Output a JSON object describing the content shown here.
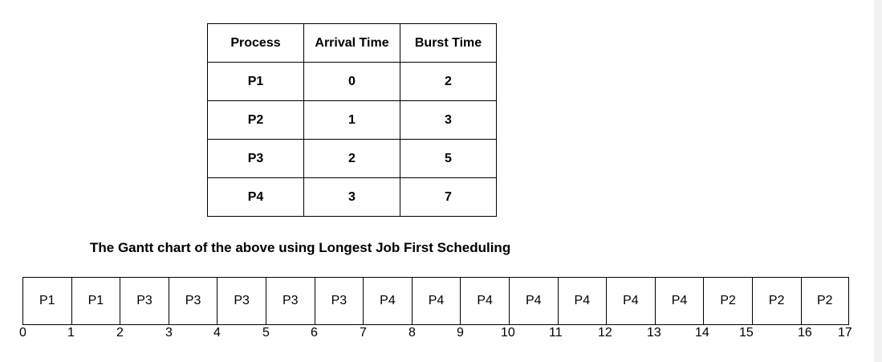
{
  "table": {
    "headers": [
      "Process",
      "Arrival Time",
      "Burst Time"
    ],
    "rows": [
      [
        "P1",
        "0",
        "2"
      ],
      [
        "P2",
        "1",
        "3"
      ],
      [
        "P3",
        "2",
        "5"
      ],
      [
        "P4",
        "3",
        "7"
      ]
    ]
  },
  "gantt": {
    "title": "The Gantt chart of the above using Longest Job First Scheduling",
    "cells": [
      "P1",
      "P1",
      "P3",
      "P3",
      "P3",
      "P3",
      "P3",
      "P4",
      "P4",
      "P4",
      "P4",
      "P4",
      "P4",
      "P4",
      "P2",
      "P2",
      "P2"
    ],
    "ticks": [
      "0",
      "1",
      "2",
      "3",
      "4",
      "5",
      "6",
      "7",
      "8",
      "9",
      "10",
      "11",
      "12",
      "13",
      "14",
      "15",
      "16",
      "17"
    ]
  }
}
